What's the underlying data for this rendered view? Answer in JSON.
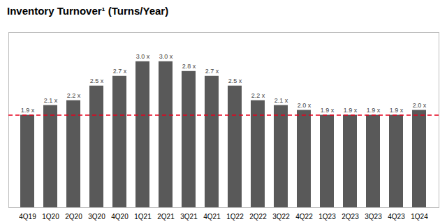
{
  "chart_data": {
    "type": "bar",
    "title": "Inventory Turnover¹ (Turns/Year)",
    "categories": [
      "4Q19",
      "1Q20",
      "2Q20",
      "3Q20",
      "4Q20",
      "1Q21",
      "2Q21",
      "3Q21",
      "4Q21",
      "1Q22",
      "2Q22",
      "3Q22",
      "4Q22",
      "1Q23",
      "2Q23",
      "3Q23",
      "4Q23",
      "1Q24"
    ],
    "values": [
      1.9,
      2.1,
      2.2,
      2.5,
      2.7,
      3.0,
      3.0,
      2.8,
      2.7,
      2.5,
      2.2,
      2.1,
      2.0,
      1.9,
      1.9,
      1.9,
      1.9,
      2.0
    ],
    "value_labels": [
      "1.9 x",
      "2.1 x",
      "2.2 x",
      "2.5 x",
      "2.7 x",
      "3.0 x",
      "3.0 x",
      "2.8 x",
      "2.7 x",
      "2.5 x",
      "2.2 x",
      "2.1 x",
      "2.0 x",
      "1.9 x",
      "1.9 x",
      "1.9 x",
      "1.9 x",
      "2.0 x"
    ],
    "data_labels": true,
    "color": "#595959",
    "reference_line": {
      "y": 1.9,
      "color": "#e8001c",
      "line_style": "dashed"
    },
    "ylim": [
      0,
      3.6
    ],
    "yticks": [],
    "tick_labels": "x",
    "grid": false
  }
}
